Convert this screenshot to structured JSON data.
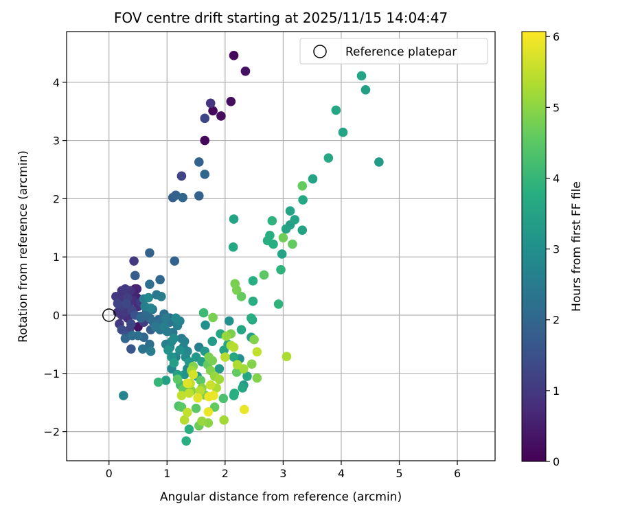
{
  "chart_data": {
    "type": "scatter",
    "title": "FOV centre drift starting at 2025/11/15 14:04:47",
    "xlabel": "Angular distance from reference (arcmin)",
    "ylabel": "Rotation from reference (arcmin)",
    "xlim": [
      -0.73,
      6.65
    ],
    "ylim": [
      -2.5,
      4.87
    ],
    "xticks": [
      0,
      1,
      2,
      3,
      4,
      5,
      6
    ],
    "yticks": [
      -2,
      -1,
      0,
      1,
      2,
      3,
      4
    ],
    "grid": true,
    "legend": {
      "position": "top-right",
      "entries": [
        "Reference platepar"
      ]
    },
    "reference_point": {
      "x": 0,
      "y": 0
    },
    "colorbar": {
      "label": "Hours from first FF file",
      "min": 0,
      "max": 6.07,
      "ticks": [
        0,
        1,
        2,
        3,
        4,
        5,
        6
      ],
      "colormap": "viridis"
    },
    "points": [
      {
        "x": 2.15,
        "y": 4.46,
        "c": 0.1
      },
      {
        "x": 2.35,
        "y": 4.19,
        "c": 0.3
      },
      {
        "x": 1.75,
        "y": 3.64,
        "c": 0.9
      },
      {
        "x": 1.79,
        "y": 3.51,
        "c": 0.1
      },
      {
        "x": 2.1,
        "y": 3.67,
        "c": 0.2
      },
      {
        "x": 1.93,
        "y": 3.42,
        "c": 0.2
      },
      {
        "x": 1.65,
        "y": 3.38,
        "c": 1.3
      },
      {
        "x": 1.65,
        "y": 3.0,
        "c": 0.1
      },
      {
        "x": 1.55,
        "y": 2.63,
        "c": 1.9
      },
      {
        "x": 1.65,
        "y": 2.42,
        "c": 2.0
      },
      {
        "x": 1.25,
        "y": 2.39,
        "c": 1.2
      },
      {
        "x": 1.55,
        "y": 2.05,
        "c": 1.9
      },
      {
        "x": 1.1,
        "y": 2.02,
        "c": 1.8
      },
      {
        "x": 1.15,
        "y": 2.06,
        "c": 1.9
      },
      {
        "x": 1.27,
        "y": 2.02,
        "c": 2.0
      },
      {
        "x": 4.35,
        "y": 4.11,
        "c": 3.5
      },
      {
        "x": 4.42,
        "y": 3.87,
        "c": 3.4
      },
      {
        "x": 3.91,
        "y": 3.52,
        "c": 3.6
      },
      {
        "x": 4.03,
        "y": 3.14,
        "c": 3.5
      },
      {
        "x": 4.65,
        "y": 2.63,
        "c": 3.3
      },
      {
        "x": 3.78,
        "y": 2.7,
        "c": 3.6
      },
      {
        "x": 3.51,
        "y": 2.34,
        "c": 3.5
      },
      {
        "x": 3.33,
        "y": 2.22,
        "c": 4.6
      },
      {
        "x": 3.34,
        "y": 1.98,
        "c": 3.6
      },
      {
        "x": 3.12,
        "y": 1.79,
        "c": 3.5
      },
      {
        "x": 3.2,
        "y": 1.64,
        "c": 3.5
      },
      {
        "x": 3.12,
        "y": 1.55,
        "c": 3.4
      },
      {
        "x": 3.05,
        "y": 1.48,
        "c": 3.5
      },
      {
        "x": 3.33,
        "y": 1.46,
        "c": 3.5
      },
      {
        "x": 2.81,
        "y": 1.62,
        "c": 3.9
      },
      {
        "x": 2.77,
        "y": 1.37,
        "c": 3.8
      },
      {
        "x": 2.73,
        "y": 1.28,
        "c": 3.8
      },
      {
        "x": 2.83,
        "y": 1.22,
        "c": 3.8
      },
      {
        "x": 3.0,
        "y": 1.33,
        "c": 4.7
      },
      {
        "x": 3.16,
        "y": 1.22,
        "c": 4.6
      },
      {
        "x": 2.98,
        "y": 1.05,
        "c": 3.5
      },
      {
        "x": 2.96,
        "y": 0.78,
        "c": 3.9
      },
      {
        "x": 2.67,
        "y": 0.69,
        "c": 4.5
      },
      {
        "x": 2.15,
        "y": 1.65,
        "c": 3.5
      },
      {
        "x": 2.14,
        "y": 1.17,
        "c": 3.6
      },
      {
        "x": 2.17,
        "y": 0.54,
        "c": 4.8
      },
      {
        "x": 2.2,
        "y": 0.43,
        "c": 4.8
      },
      {
        "x": 2.28,
        "y": 0.32,
        "c": 4.6
      },
      {
        "x": 2.48,
        "y": 0.59,
        "c": 3.8
      },
      {
        "x": 2.48,
        "y": 0.24,
        "c": 3.8
      },
      {
        "x": 2.92,
        "y": 0.19,
        "c": 3.9
      },
      {
        "x": 2.45,
        "y": -0.05,
        "c": 3.8
      },
      {
        "x": 2.47,
        "y": -0.08,
        "c": 3.6
      },
      {
        "x": 2.45,
        "y": -0.38,
        "c": 3.4
      },
      {
        "x": 2.5,
        "y": -0.42,
        "c": 4.9
      },
      {
        "x": 2.55,
        "y": -0.63,
        "c": 5.5
      },
      {
        "x": 2.46,
        "y": -0.84,
        "c": 4.9
      },
      {
        "x": 2.55,
        "y": -1.08,
        "c": 4.9
      },
      {
        "x": 3.06,
        "y": -0.71,
        "c": 5.3
      },
      {
        "x": 2.28,
        "y": -0.25,
        "c": 3.6
      },
      {
        "x": 2.1,
        "y": -0.32,
        "c": 4.8
      },
      {
        "x": 2.02,
        "y": -0.36,
        "c": 5.1
      },
      {
        "x": 1.92,
        "y": -0.32,
        "c": 3.6
      },
      {
        "x": 1.78,
        "y": -0.45,
        "c": 3.3
      },
      {
        "x": 1.79,
        "y": -0.04,
        "c": 4.8
      },
      {
        "x": 1.63,
        "y": 0.04,
        "c": 4.1
      },
      {
        "x": 1.66,
        "y": -0.17,
        "c": 3.0
      },
      {
        "x": 2.07,
        "y": -0.1,
        "c": 3.0
      },
      {
        "x": 2.05,
        "y": -0.5,
        "c": 3.6
      },
      {
        "x": 2.1,
        "y": -0.52,
        "c": 5.3
      },
      {
        "x": 2.15,
        "y": -0.55,
        "c": 5.4
      },
      {
        "x": 2.15,
        "y": -0.72,
        "c": 3.6
      },
      {
        "x": 2.25,
        "y": -0.75,
        "c": 3.0
      },
      {
        "x": 2.21,
        "y": -0.85,
        "c": 5.3
      },
      {
        "x": 2.32,
        "y": -0.92,
        "c": 5.2
      },
      {
        "x": 2.2,
        "y": -0.98,
        "c": 4.6
      },
      {
        "x": 2.0,
        "y": -0.72,
        "c": 5.4
      },
      {
        "x": 2.38,
        "y": -1.05,
        "c": 3.6
      },
      {
        "x": 2.32,
        "y": -1.2,
        "c": 3.3
      },
      {
        "x": 2.3,
        "y": -1.25,
        "c": 3.6
      },
      {
        "x": 2.16,
        "y": -1.34,
        "c": 3.8
      },
      {
        "x": 2.15,
        "y": -1.38,
        "c": 3.8
      },
      {
        "x": 2.33,
        "y": -1.62,
        "c": 5.9
      },
      {
        "x": 1.97,
        "y": -1.43,
        "c": 4.3
      },
      {
        "x": 1.98,
        "y": -1.8,
        "c": 5.2
      },
      {
        "x": 1.82,
        "y": -1.58,
        "c": 4.6
      },
      {
        "x": 1.72,
        "y": -1.4,
        "c": 5.9
      },
      {
        "x": 1.71,
        "y": -1.66,
        "c": 5.9
      },
      {
        "x": 1.71,
        "y": -1.85,
        "c": 5.0
      },
      {
        "x": 1.55,
        "y": -1.9,
        "c": 4.7
      },
      {
        "x": 1.6,
        "y": -1.82,
        "c": 5.1
      },
      {
        "x": 1.5,
        "y": -1.6,
        "c": 4.5
      },
      {
        "x": 1.35,
        "y": -1.67,
        "c": 5.5
      },
      {
        "x": 1.3,
        "y": -1.8,
        "c": 5.4
      },
      {
        "x": 1.38,
        "y": -1.96,
        "c": 3.8
      },
      {
        "x": 1.33,
        "y": -2.16,
        "c": 3.8
      },
      {
        "x": 1.25,
        "y": -1.58,
        "c": 4.5
      },
      {
        "x": 1.2,
        "y": -1.56,
        "c": 4.3
      },
      {
        "x": 1.28,
        "y": -1.27,
        "c": 4.6
      },
      {
        "x": 1.23,
        "y": -1.2,
        "c": 4.2
      },
      {
        "x": 1.35,
        "y": -1.17,
        "c": 5.8
      },
      {
        "x": 1.4,
        "y": -1.17,
        "c": 5.5
      },
      {
        "x": 1.38,
        "y": -1.34,
        "c": 5.5
      },
      {
        "x": 1.42,
        "y": -1.3,
        "c": 5.0
      },
      {
        "x": 1.53,
        "y": -1.42,
        "c": 5.8
      },
      {
        "x": 1.57,
        "y": -1.3,
        "c": 5.4
      },
      {
        "x": 1.6,
        "y": -1.25,
        "c": 5.0
      },
      {
        "x": 1.65,
        "y": -1.37,
        "c": 4.8
      },
      {
        "x": 1.75,
        "y": -1.2,
        "c": 5.6
      },
      {
        "x": 1.8,
        "y": -1.38,
        "c": 5.9
      },
      {
        "x": 1.85,
        "y": -1.25,
        "c": 5.3
      },
      {
        "x": 1.9,
        "y": -1.1,
        "c": 5.2
      },
      {
        "x": 1.82,
        "y": -1.05,
        "c": 5.1
      },
      {
        "x": 1.75,
        "y": -0.95,
        "c": 4.9
      },
      {
        "x": 1.7,
        "y": -0.85,
        "c": 4.6
      },
      {
        "x": 1.72,
        "y": -0.72,
        "c": 4.8
      },
      {
        "x": 1.78,
        "y": -0.78,
        "c": 4.8
      },
      {
        "x": 1.65,
        "y": -0.62,
        "c": 3.2
      },
      {
        "x": 1.55,
        "y": -0.55,
        "c": 2.6
      },
      {
        "x": 1.5,
        "y": -0.72,
        "c": 3.2
      },
      {
        "x": 1.45,
        "y": -0.88,
        "c": 4.9
      },
      {
        "x": 1.42,
        "y": -0.95,
        "c": 5.2
      },
      {
        "x": 1.52,
        "y": -1.05,
        "c": 3.3
      },
      {
        "x": 1.58,
        "y": -1.12,
        "c": 4.5
      },
      {
        "x": 1.6,
        "y": -0.8,
        "c": 3.4
      },
      {
        "x": 1.38,
        "y": -0.8,
        "c": 3.2
      },
      {
        "x": 1.32,
        "y": -0.72,
        "c": 2.9
      },
      {
        "x": 1.35,
        "y": -0.62,
        "c": 2.8
      },
      {
        "x": 1.28,
        "y": -0.55,
        "c": 2.6
      },
      {
        "x": 1.22,
        "y": -0.6,
        "c": 3.0
      },
      {
        "x": 1.15,
        "y": -0.72,
        "c": 2.7
      },
      {
        "x": 1.08,
        "y": -0.72,
        "c": 3.1
      },
      {
        "x": 1.12,
        "y": -0.82,
        "c": 3.4
      },
      {
        "x": 1.08,
        "y": -0.92,
        "c": 2.8
      },
      {
        "x": 1.18,
        "y": -1.02,
        "c": 3.4
      },
      {
        "x": 1.3,
        "y": -1.02,
        "c": 3.1
      },
      {
        "x": 1.35,
        "y": -0.92,
        "c": 2.8
      },
      {
        "x": 1.18,
        "y": -1.1,
        "c": 4.5
      },
      {
        "x": 0.85,
        "y": -1.15,
        "c": 4.0
      },
      {
        "x": 0.98,
        "y": -1.12,
        "c": 3.4
      },
      {
        "x": 1.25,
        "y": -1.38,
        "c": 5.5
      },
      {
        "x": 1.45,
        "y": -1.02,
        "c": 5.7
      },
      {
        "x": 1.9,
        "y": -0.92,
        "c": 3.3
      },
      {
        "x": 1.98,
        "y": -0.6,
        "c": 3.5
      },
      {
        "x": 1.05,
        "y": -0.55,
        "c": 2.8
      },
      {
        "x": 1.02,
        "y": -0.6,
        "c": 3.1
      },
      {
        "x": 0.98,
        "y": -0.5,
        "c": 2.6
      },
      {
        "x": 1.08,
        "y": -0.45,
        "c": 2.7
      },
      {
        "x": 1.12,
        "y": -0.4,
        "c": 2.9
      },
      {
        "x": 1.25,
        "y": -0.4,
        "c": 2.5
      },
      {
        "x": 1.3,
        "y": -0.45,
        "c": 2.7
      },
      {
        "x": 1.1,
        "y": -0.3,
        "c": 2.4
      },
      {
        "x": 1.18,
        "y": -0.18,
        "c": 2.6
      },
      {
        "x": 1.22,
        "y": -0.1,
        "c": 2.7
      },
      {
        "x": 1.15,
        "y": -0.05,
        "c": 2.8
      },
      {
        "x": 1.05,
        "y": -0.12,
        "c": 2.3
      },
      {
        "x": 0.98,
        "y": -0.05,
        "c": 2.5
      },
      {
        "x": 0.92,
        "y": -0.1,
        "c": 2.2
      },
      {
        "x": 0.85,
        "y": -0.08,
        "c": 2.0
      },
      {
        "x": 0.8,
        "y": -0.2,
        "c": 2.4
      },
      {
        "x": 0.72,
        "y": -0.25,
        "c": 1.8
      },
      {
        "x": 0.7,
        "y": -0.5,
        "c": 2.2
      },
      {
        "x": 0.72,
        "y": -0.62,
        "c": 2.5
      },
      {
        "x": 0.58,
        "y": -0.58,
        "c": 2.3
      },
      {
        "x": 0.6,
        "y": -0.38,
        "c": 2.0
      },
      {
        "x": 0.5,
        "y": -0.35,
        "c": 2.2
      },
      {
        "x": 0.5,
        "y": -0.2,
        "c": 0.3
      },
      {
        "x": 0.55,
        "y": -0.05,
        "c": 2.0
      },
      {
        "x": 0.45,
        "y": 0.0,
        "c": 1.5
      },
      {
        "x": 0.38,
        "y": -0.15,
        "c": 1.3
      },
      {
        "x": 0.4,
        "y": -0.35,
        "c": 2.2
      },
      {
        "x": 0.38,
        "y": -0.58,
        "c": 1.6
      },
      {
        "x": 0.3,
        "y": -0.35,
        "c": 1.5
      },
      {
        "x": 0.28,
        "y": -0.4,
        "c": 2.0
      },
      {
        "x": 0.22,
        "y": -0.25,
        "c": 1.4
      },
      {
        "x": 0.18,
        "y": -0.15,
        "c": 1.0
      },
      {
        "x": 0.22,
        "y": 0.0,
        "c": 0.9
      },
      {
        "x": 0.15,
        "y": 0.05,
        "c": 0.9
      },
      {
        "x": 0.15,
        "y": 0.2,
        "c": 1.2
      },
      {
        "x": 0.12,
        "y": 0.32,
        "c": 1.0
      },
      {
        "x": 0.2,
        "y": 0.28,
        "c": 0.9
      },
      {
        "x": 0.25,
        "y": 0.38,
        "c": 0.8
      },
      {
        "x": 0.28,
        "y": 0.45,
        "c": 1.0
      },
      {
        "x": 0.35,
        "y": 0.42,
        "c": 0.9
      },
      {
        "x": 0.32,
        "y": 0.3,
        "c": 1.1
      },
      {
        "x": 0.3,
        "y": 0.2,
        "c": 1.3
      },
      {
        "x": 0.35,
        "y": 0.12,
        "c": 1.0
      },
      {
        "x": 0.4,
        "y": 0.08,
        "c": 1.2
      },
      {
        "x": 0.42,
        "y": 0.25,
        "c": 0.8
      },
      {
        "x": 0.42,
        "y": 0.35,
        "c": 0.6
      },
      {
        "x": 0.38,
        "y": 0.42,
        "c": 0.7
      },
      {
        "x": 0.45,
        "y": 0.45,
        "c": 0.3
      },
      {
        "x": 0.48,
        "y": 0.3,
        "c": 0.5
      },
      {
        "x": 0.5,
        "y": 0.15,
        "c": 0.7
      },
      {
        "x": 0.55,
        "y": 0.22,
        "c": 1.0
      },
      {
        "x": 0.6,
        "y": 0.28,
        "c": 2.5
      },
      {
        "x": 0.62,
        "y": 0.15,
        "c": 2.6
      },
      {
        "x": 0.68,
        "y": 0.3,
        "c": 2.8
      },
      {
        "x": 0.65,
        "y": 0.05,
        "c": 2.1
      },
      {
        "x": 0.7,
        "y": -0.05,
        "c": 2.0
      },
      {
        "x": 0.75,
        "y": 0.1,
        "c": 2.3
      },
      {
        "x": 0.82,
        "y": 0.35,
        "c": 2.4
      },
      {
        "x": 0.9,
        "y": 0.32,
        "c": 2.5
      },
      {
        "x": 0.7,
        "y": 0.53,
        "c": 2.2
      },
      {
        "x": 0.88,
        "y": 0.61,
        "c": 2.0
      },
      {
        "x": 0.7,
        "y": 1.07,
        "c": 1.9
      },
      {
        "x": 1.13,
        "y": 0.93,
        "c": 1.9
      },
      {
        "x": 0.43,
        "y": 0.93,
        "c": 1.0
      },
      {
        "x": 0.45,
        "y": 0.68,
        "c": 1.8
      },
      {
        "x": 0.48,
        "y": 0.45,
        "c": 0.6
      },
      {
        "x": 0.25,
        "y": -1.38,
        "c": 2.7
      },
      {
        "x": 0.55,
        "y": -0.02,
        "c": 1.7
      },
      {
        "x": 0.6,
        "y": -0.12,
        "c": 1.1
      },
      {
        "x": 0.65,
        "y": 0.08,
        "c": 1.3
      },
      {
        "x": 0.72,
        "y": 0.12,
        "c": 2.7
      },
      {
        "x": 0.75,
        "y": -0.1,
        "c": 2.1
      },
      {
        "x": 0.82,
        "y": -0.15,
        "c": 2.2
      },
      {
        "x": 0.88,
        "y": -0.25,
        "c": 2.3
      },
      {
        "x": 0.95,
        "y": -0.2,
        "c": 2.6
      },
      {
        "x": 1.0,
        "y": -0.28,
        "c": 2.5
      },
      {
        "x": 1.05,
        "y": -0.05,
        "c": 2.0
      },
      {
        "x": 0.95,
        "y": 0.02,
        "c": 2.2
      },
      {
        "x": 0.25,
        "y": 0.1,
        "c": 0.9
      },
      {
        "x": 0.28,
        "y": 0.05,
        "c": 1.0
      },
      {
        "x": 0.32,
        "y": -0.05,
        "c": 0.8
      },
      {
        "x": 0.2,
        "y": 0.15,
        "c": 1.1
      },
      {
        "x": 0.35,
        "y": -0.25,
        "c": 1.2
      },
      {
        "x": 0.3,
        "y": 0.35,
        "c": 0.7
      },
      {
        "x": 0.22,
        "y": 0.42,
        "c": 0.9
      }
    ]
  }
}
